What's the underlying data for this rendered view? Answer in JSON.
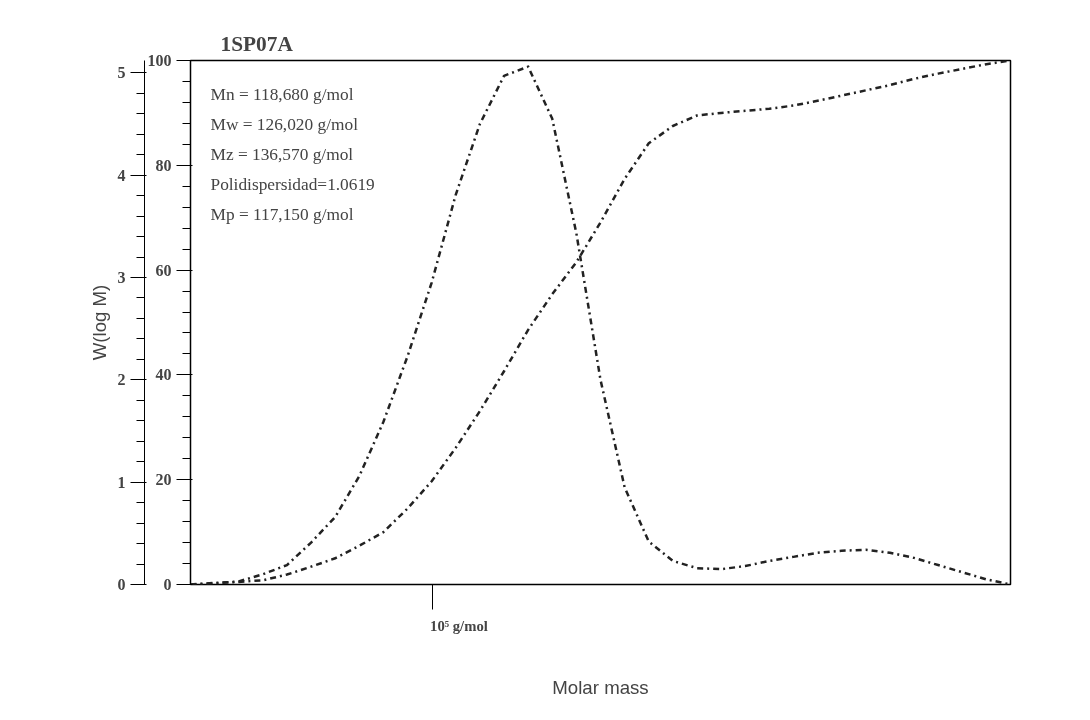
{
  "chart_data": {
    "type": "line",
    "title": "1SP07A",
    "xlabel": "Molar mass",
    "ylabel": "W(log M)",
    "grid": false,
    "line_style": "dashed",
    "marker": "none",
    "categories": [
      null,
      null,
      null,
      null,
      null,
      null,
      null,
      null,
      null,
      null,
      null,
      null,
      null,
      null,
      null,
      null,
      null,
      null,
      null,
      null,
      null,
      null,
      null,
      null,
      null,
      null,
      null,
      null,
      null,
      null,
      null,
      null,
      null,
      null,
      null
    ],
    "ylim": [
      0,
      5.12
    ],
    "yticks": [
      0,
      1,
      2,
      3,
      4,
      5
    ],
    "y2lim": [
      0,
      100
    ],
    "y2ticks": [
      0,
      20,
      40,
      60,
      80,
      100
    ],
    "annotations": [
      "Mn = 118,680 g/mol",
      "Mw = 126,020 g/mol",
      "Mz = 136,570 g/mol",
      "Polidispersidad=1.0619",
      "Mp = 117,150 g/mol",
      "10⁵ g/mol"
    ],
    "series": [
      {
        "color": "#222222",
        "values": [
          0,
          0.01,
          0.03,
          0.1,
          0.19,
          0.41,
          0.66,
          1.06,
          1.59,
          2.23,
          2.95,
          3.81,
          4.5,
          4.97,
          5.06,
          4.55,
          3.43,
          2.0,
          0.95,
          0.42,
          0.23,
          0.16,
          0.15,
          0.18,
          0.23,
          0.27,
          0.31,
          0.33,
          0.34,
          0.31,
          0.26,
          0.19,
          0.12,
          0.05,
          0
        ]
      },
      {
        "color": "#222222",
        "axis": "y2",
        "values": [
          0,
          0.3,
          0.5,
          0.8,
          1.9,
          3.4,
          5,
          7.4,
          10,
          14.5,
          19.7,
          26.1,
          33.1,
          40.7,
          48.6,
          55.4,
          61.5,
          69.1,
          77.4,
          84.2,
          87.5,
          89.5,
          90.0,
          90.4,
          90.8,
          91.4,
          92.3,
          93.3,
          94.3,
          95.3,
          96.5,
          97.5,
          98.4,
          99.3,
          100
        ]
      }
    ]
  }
}
